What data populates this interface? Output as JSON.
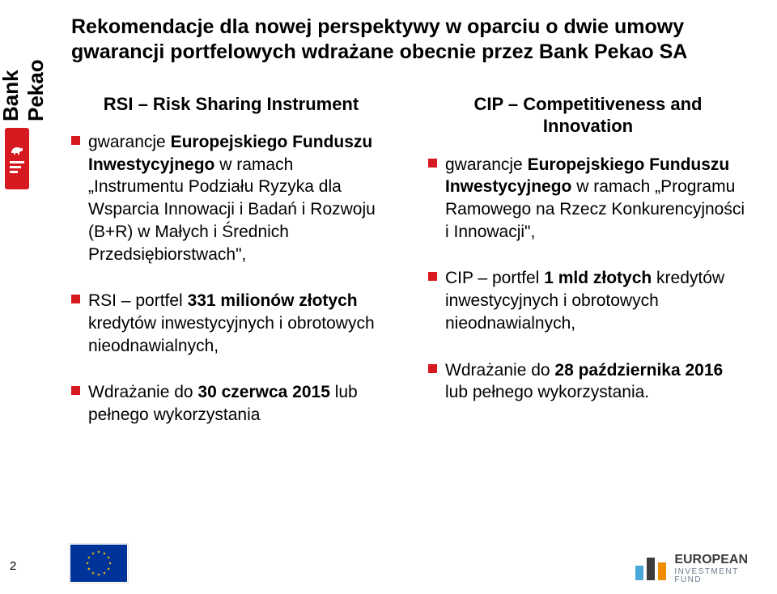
{
  "title": "Rekomendacje dla nowej perspektywy w oparciu o dwie umowy gwarancji portfelowych wdrażane obecnie przez Bank Pekao SA",
  "left": {
    "heading": "RSI – Risk Sharing Instrument",
    "b1_pre": "gwarancje ",
    "b1_bold": "Europejskiego Funduszu Inwestycyjnego",
    "b1_post": " w ramach „Instrumentu Podziału Ryzyka dla Wsparcia Innowacji i Badań i Rozwoju (B+R) w Małych i Średnich Przedsiębiorstwach\",",
    "b2_pre": "RSI – portfel ",
    "b2_bold": "331 milionów złotych",
    "b2_post": " kredytów inwestycyjnych i obrotowych nieodnawialnych,",
    "b3_pre": "Wdrażanie do ",
    "b3_bold": "30 czerwca 2015",
    "b3_post": " lub pełnego wykorzystania"
  },
  "right": {
    "heading": "CIP – Competitiveness and Innovation",
    "b1_pre": "gwarancje ",
    "b1_bold": "Europejskiego Funduszu Inwestycyjnego",
    "b1_post": " w ramach „Programu Ramowego na Rzecz Konkurencyjności i Innowacji\",",
    "b2_pre": "CIP – portfel ",
    "b2_bold": "1 mld złotych",
    "b2_post": " kredytów inwestycyjnych i obrotowych nieodnawialnych,",
    "b3_pre": "Wdrażanie do ",
    "b3_bold": "28 października 2016",
    "b3_post": " lub pełnego wykorzystania."
  },
  "pageNumber": "2",
  "logo": {
    "text": "Bank Pekao"
  },
  "eif": {
    "line1": "EUROPEAN",
    "line2": "INVESTMENT",
    "line3": "FUND"
  },
  "colors": {
    "accent": "#d71920",
    "euBlue": "#003399",
    "euGold": "#ffcc00",
    "eifBar1": "#4aa8d8",
    "eifBar2": "#3c3c3c",
    "eifBar3": "#f08c00",
    "eifText": "#6a7a8a"
  }
}
